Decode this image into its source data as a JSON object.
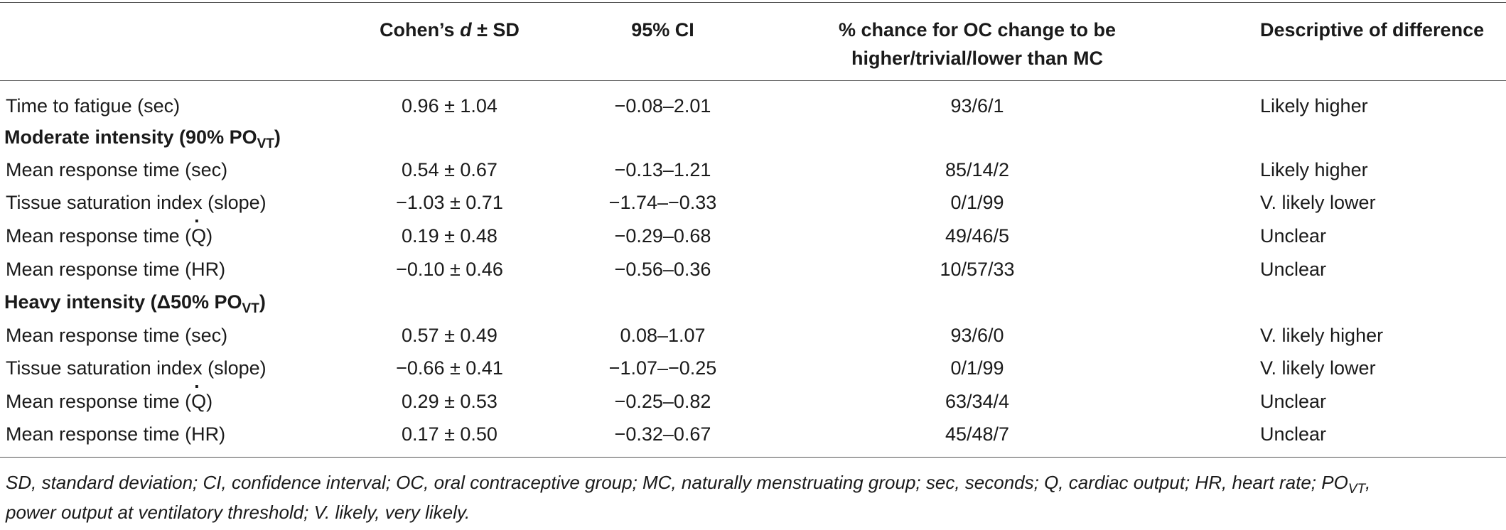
{
  "headers": {
    "cohen": "Cohen’s d ± SD",
    "ci": "95% CI",
    "chance_line1": "% chance for OC change to be",
    "chance_line2": "higher/trivial/lower than MC",
    "descriptive": "Descriptive of difference"
  },
  "rows": {
    "fatigue": {
      "label": "Time to fatigue (sec)",
      "cohen": "0.96 ± 1.04",
      "ci": "−0.08–2.01",
      "chance": "93/6/1",
      "desc": "Likely higher"
    },
    "moderate_title": "Moderate intensity (90% PO",
    "moderate_sub": "VT",
    "moderate_close": ")",
    "mod": [
      {
        "label": "Mean response time (sec)",
        "cohen": "0.54 ± 0.67",
        "ci": "−0.13–1.21",
        "chance": "85/14/2",
        "desc": "Likely higher"
      },
      {
        "label": "Tissue saturation index (slope)",
        "cohen": "−1.03 ± 0.71",
        "ci": "−1.74–−0.33",
        "chance": "0/1/99",
        "desc": "V. likely lower"
      },
      {
        "label_pre": "Mean response time (",
        "label_q": "Q",
        "label_post": ")",
        "cohen": "0.19 ± 0.48",
        "ci": "−0.29–0.68",
        "chance": "49/46/5",
        "desc": "Unclear"
      },
      {
        "label": "Mean response time (HR)",
        "cohen": "−0.10 ± 0.46",
        "ci": "−0.56–0.36",
        "chance": "10/57/33",
        "desc": "Unclear"
      }
    ],
    "heavy_title": "Heavy intensity (Δ50% PO",
    "heavy_sub": "VT",
    "heavy_close": ")",
    "heavy": [
      {
        "label": "Mean response time (sec)",
        "cohen": "0.57 ± 0.49",
        "ci": "0.08–1.07",
        "chance": "93/6/0",
        "desc": "V. likely higher"
      },
      {
        "label": "Tissue saturation index (slope)",
        "cohen": "−0.66 ± 0.41",
        "ci": "−1.07–−0.25",
        "chance": "0/1/99",
        "desc": "V. likely lower"
      },
      {
        "label_pre": "Mean response time (",
        "label_q": "Q",
        "label_post": ")",
        "cohen": "0.29 ± 0.53",
        "ci": "−0.25–0.82",
        "chance": "63/34/4",
        "desc": "Unclear"
      },
      {
        "label": "Mean response time (HR)",
        "cohen": "0.17 ± 0.50",
        "ci": "−0.32–0.67",
        "chance": "45/48/7",
        "desc": "Unclear"
      }
    ]
  },
  "footnote": {
    "part1": "SD, standard deviation; CI, confidence interval; OC, oral contraceptive group; MC, naturally menstruating group; sec, seconds; Q, cardiac output; HR, heart rate; PO",
    "sub": "VT",
    "part2": ",",
    "line2": "power output at ventilatory threshold; V. likely, very likely."
  }
}
